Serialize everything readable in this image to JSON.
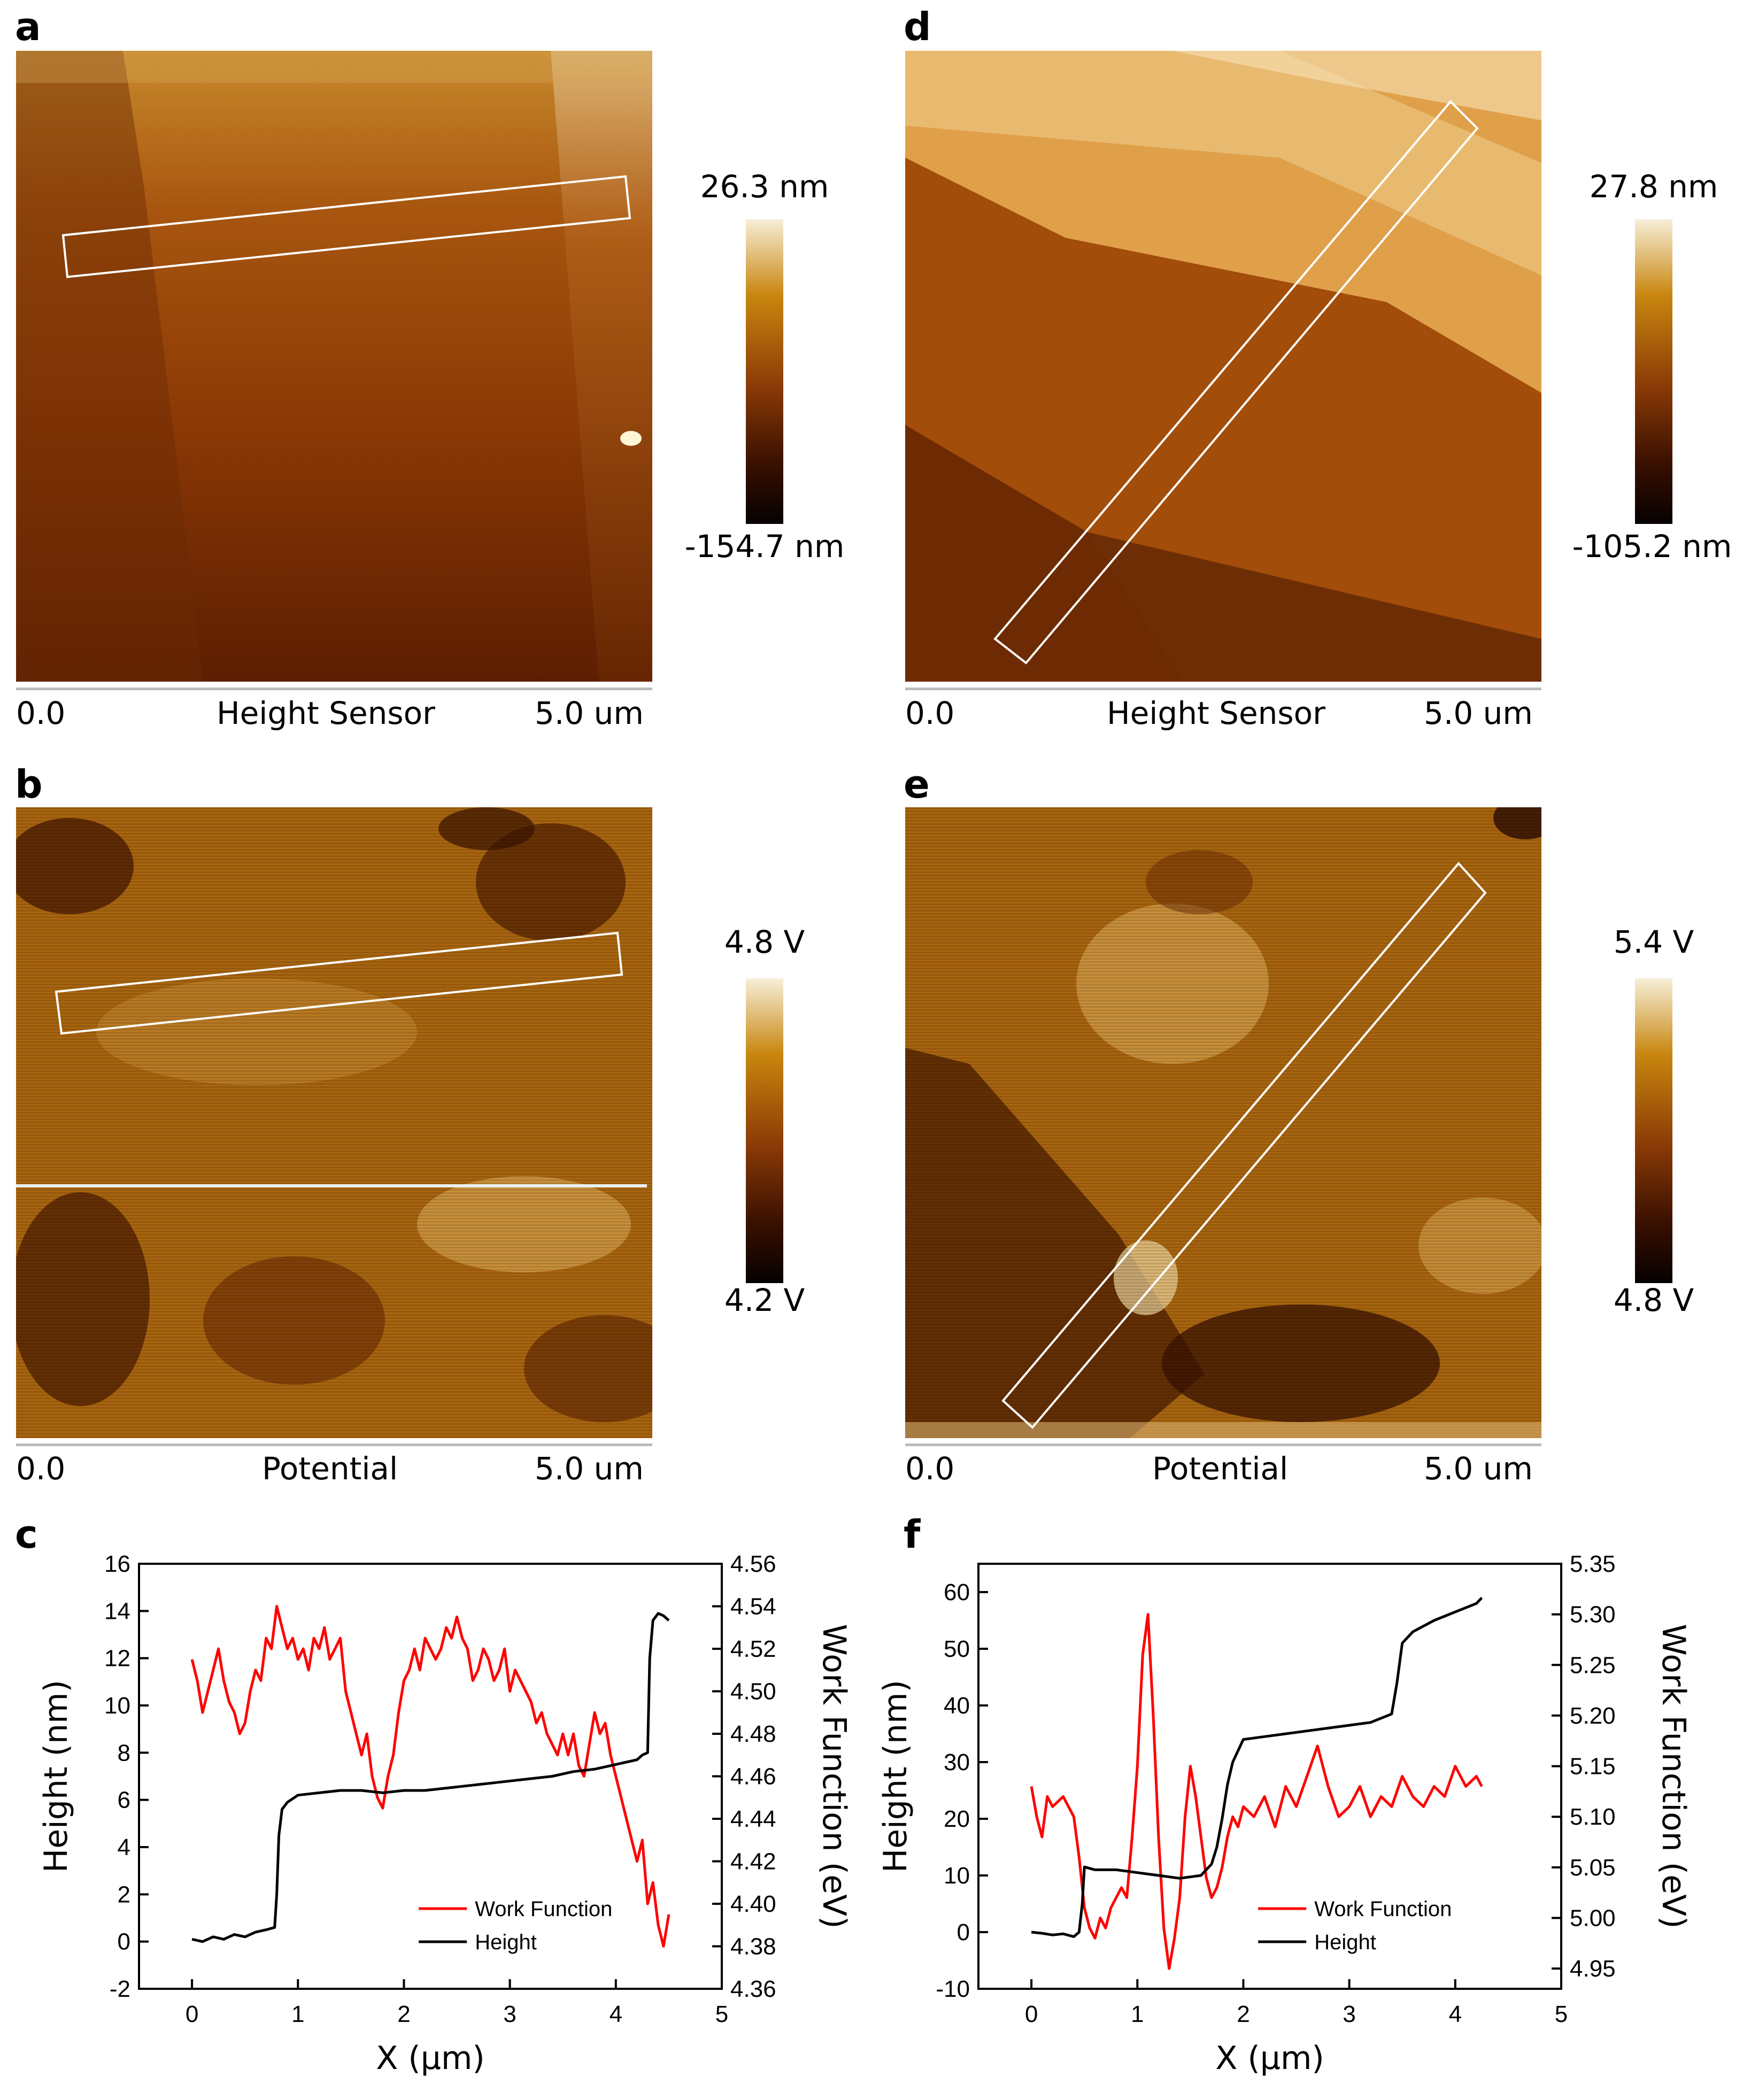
{
  "panels": {
    "a": {
      "letter": "a",
      "bar_max": "26.3 nm",
      "bar_min": "-154.7 nm",
      "axis_start": "0.0",
      "axis_title": "Height Sensor",
      "axis_end": "5.0 um"
    },
    "b": {
      "letter": "b",
      "bar_max": "4.8 V",
      "bar_min": "4.2 V",
      "axis_start": "0.0",
      "axis_title": "Potential",
      "axis_end": "5.0 um"
    },
    "d": {
      "letter": "d",
      "bar_max": "27.8 nm",
      "bar_min": "-105.2 nm",
      "axis_start": "0.0",
      "axis_title": "Height Sensor",
      "axis_end": "5.0 um"
    },
    "e": {
      "letter": "e",
      "bar_max": "5.4 V",
      "bar_min": "4.8 V",
      "axis_start": "0.0",
      "axis_title": "Potential",
      "axis_end": "5.0 um"
    },
    "c": {
      "letter": "c"
    },
    "f": {
      "letter": "f"
    }
  },
  "colors": {
    "afm_dark": "#1a0600",
    "afm_mid": "#8a3a06",
    "afm_bright": "#c8860e",
    "afm_light": "#f7efd9",
    "work_function": "#ff0000",
    "height": "#000000"
  },
  "chart_data": [
    {
      "type": "line",
      "panel": "c",
      "xlabel": "X (μm)",
      "ylabel": "Height (nm)",
      "y2label": "Work Function (eV)",
      "xlim": [
        -0.5,
        5
      ],
      "ylim": [
        -2,
        16
      ],
      "y2lim": [
        4.36,
        4.56
      ],
      "xticks": [
        "0",
        "1",
        "2",
        "3",
        "4",
        "5"
      ],
      "yticks": [
        "-2",
        "0",
        "2",
        "4",
        "6",
        "8",
        "10",
        "12",
        "14",
        "16"
      ],
      "y2ticks": [
        "4.36",
        "4.38",
        "4.40",
        "4.42",
        "4.44",
        "4.46",
        "4.48",
        "4.50",
        "4.52",
        "4.54",
        "4.56"
      ],
      "legend": "bottom-right",
      "series": [
        {
          "name": "Work Function",
          "axis": "right",
          "color": "#ff0000",
          "x": [
            0.0,
            0.05,
            0.1,
            0.15,
            0.2,
            0.25,
            0.3,
            0.35,
            0.4,
            0.45,
            0.5,
            0.55,
            0.6,
            0.65,
            0.7,
            0.75,
            0.8,
            0.85,
            0.9,
            0.95,
            1.0,
            1.05,
            1.1,
            1.15,
            1.2,
            1.25,
            1.3,
            1.35,
            1.4,
            1.45,
            1.5,
            1.55,
            1.6,
            1.65,
            1.7,
            1.75,
            1.8,
            1.85,
            1.9,
            1.95,
            2.0,
            2.05,
            2.1,
            2.15,
            2.2,
            2.25,
            2.3,
            2.35,
            2.4,
            2.45,
            2.5,
            2.55,
            2.6,
            2.65,
            2.7,
            2.75,
            2.8,
            2.85,
            2.9,
            2.95,
            3.0,
            3.05,
            3.1,
            3.15,
            3.2,
            3.25,
            3.3,
            3.35,
            3.4,
            3.45,
            3.5,
            3.55,
            3.6,
            3.65,
            3.7,
            3.75,
            3.8,
            3.85,
            3.9,
            3.95,
            4.0,
            4.05,
            4.1,
            4.15,
            4.2,
            4.25,
            4.3,
            4.35,
            4.4,
            4.45,
            4.5
          ],
          "y": [
            4.515,
            4.505,
            4.49,
            4.5,
            4.51,
            4.52,
            4.505,
            4.495,
            4.49,
            4.48,
            4.485,
            4.5,
            4.51,
            4.505,
            4.525,
            4.52,
            4.54,
            4.53,
            4.52,
            4.525,
            4.515,
            4.52,
            4.51,
            4.525,
            4.52,
            4.53,
            4.515,
            4.52,
            4.525,
            4.5,
            4.49,
            4.48,
            4.47,
            4.48,
            4.46,
            4.45,
            4.445,
            4.46,
            4.47,
            4.49,
            4.505,
            4.51,
            4.52,
            4.51,
            4.525,
            4.52,
            4.515,
            4.52,
            4.53,
            4.525,
            4.535,
            4.525,
            4.52,
            4.505,
            4.51,
            4.52,
            4.515,
            4.505,
            4.51,
            4.52,
            4.5,
            4.51,
            4.505,
            4.5,
            4.495,
            4.485,
            4.49,
            4.48,
            4.475,
            4.47,
            4.48,
            4.47,
            4.48,
            4.465,
            4.46,
            4.475,
            4.49,
            4.48,
            4.485,
            4.47,
            4.46,
            4.45,
            4.44,
            4.43,
            4.42,
            4.43,
            4.4,
            4.41,
            4.39,
            4.38,
            4.395
          ]
        },
        {
          "name": "Height",
          "axis": "left",
          "color": "#000000",
          "x": [
            0.0,
            0.1,
            0.2,
            0.3,
            0.4,
            0.5,
            0.6,
            0.7,
            0.78,
            0.8,
            0.82,
            0.85,
            0.9,
            1.0,
            1.2,
            1.4,
            1.6,
            1.8,
            2.0,
            2.2,
            2.4,
            2.6,
            2.8,
            3.0,
            3.2,
            3.4,
            3.6,
            3.8,
            4.0,
            4.1,
            4.2,
            4.25,
            4.3,
            4.32,
            4.35,
            4.4,
            4.45,
            4.5
          ],
          "y": [
            0.1,
            0.0,
            0.2,
            0.1,
            0.3,
            0.2,
            0.4,
            0.5,
            0.6,
            2.0,
            4.5,
            5.6,
            5.9,
            6.2,
            6.3,
            6.4,
            6.4,
            6.3,
            6.4,
            6.4,
            6.5,
            6.6,
            6.7,
            6.8,
            6.9,
            7.0,
            7.2,
            7.3,
            7.5,
            7.6,
            7.7,
            7.9,
            8.0,
            12.0,
            13.6,
            13.9,
            13.8,
            13.6
          ]
        }
      ]
    },
    {
      "type": "line",
      "panel": "f",
      "xlabel": "X (μm)",
      "ylabel": "Height (nm)",
      "y2label": "Work Function (eV)",
      "xlim": [
        -0.5,
        5
      ],
      "ylim": [
        -10,
        65
      ],
      "y2lim": [
        4.93,
        5.35
      ],
      "xticks": [
        "0",
        "1",
        "2",
        "3",
        "4",
        "5"
      ],
      "yticks": [
        "-10",
        "0",
        "10",
        "20",
        "30",
        "40",
        "50",
        "60"
      ],
      "y2ticks": [
        "4.95",
        "5.00",
        "5.05",
        "5.10",
        "5.15",
        "5.20",
        "5.25",
        "5.30",
        "5.35"
      ],
      "legend": "bottom-right",
      "series": [
        {
          "name": "Work Function",
          "axis": "right",
          "color": "#ff0000",
          "x": [
            0.0,
            0.05,
            0.1,
            0.15,
            0.2,
            0.25,
            0.3,
            0.35,
            0.4,
            0.45,
            0.5,
            0.55,
            0.6,
            0.65,
            0.7,
            0.75,
            0.8,
            0.85,
            0.9,
            0.95,
            1.0,
            1.05,
            1.1,
            1.15,
            1.2,
            1.25,
            1.3,
            1.35,
            1.4,
            1.45,
            1.5,
            1.55,
            1.6,
            1.65,
            1.7,
            1.75,
            1.8,
            1.85,
            1.9,
            1.95,
            2.0,
            2.1,
            2.2,
            2.3,
            2.4,
            2.5,
            2.6,
            2.7,
            2.75,
            2.8,
            2.9,
            3.0,
            3.1,
            3.2,
            3.3,
            3.4,
            3.5,
            3.6,
            3.7,
            3.8,
            3.9,
            4.0,
            4.1,
            4.2,
            4.25
          ],
          "y": [
            5.13,
            5.1,
            5.08,
            5.12,
            5.11,
            5.115,
            5.12,
            5.11,
            5.1,
            5.06,
            5.01,
            4.99,
            4.98,
            5.0,
            4.99,
            5.01,
            5.02,
            5.03,
            5.02,
            5.08,
            5.15,
            5.26,
            5.3,
            5.2,
            5.08,
            4.99,
            4.95,
            4.98,
            5.02,
            5.1,
            5.15,
            5.12,
            5.08,
            5.04,
            5.02,
            5.03,
            5.05,
            5.08,
            5.1,
            5.09,
            5.11,
            5.1,
            5.12,
            5.09,
            5.13,
            5.11,
            5.14,
            5.17,
            5.15,
            5.13,
            5.1,
            5.11,
            5.13,
            5.1,
            5.12,
            5.11,
            5.14,
            5.12,
            5.11,
            5.13,
            5.12,
            5.15,
            5.13,
            5.14,
            5.13
          ]
        },
        {
          "name": "Height",
          "axis": "left",
          "color": "#000000",
          "x": [
            0.0,
            0.1,
            0.2,
            0.3,
            0.4,
            0.45,
            0.48,
            0.5,
            0.6,
            0.8,
            1.0,
            1.2,
            1.4,
            1.6,
            1.7,
            1.75,
            1.8,
            1.85,
            1.9,
            1.95,
            2.0,
            2.2,
            2.4,
            2.6,
            2.8,
            3.0,
            3.2,
            3.4,
            3.45,
            3.5,
            3.55,
            3.6,
            3.8,
            4.0,
            4.2,
            4.25
          ],
          "y": [
            0.0,
            -0.2,
            -0.5,
            -0.3,
            -0.8,
            0.0,
            5.0,
            11.5,
            11.0,
            11.0,
            10.5,
            10.0,
            9.5,
            10.0,
            12.0,
            15.0,
            20.0,
            26.0,
            30.0,
            32.0,
            34.0,
            34.5,
            35.0,
            35.5,
            36.0,
            36.5,
            37.0,
            38.5,
            44.0,
            51.0,
            52.0,
            53.0,
            55.0,
            56.5,
            58.0,
            59.0
          ]
        }
      ]
    }
  ]
}
